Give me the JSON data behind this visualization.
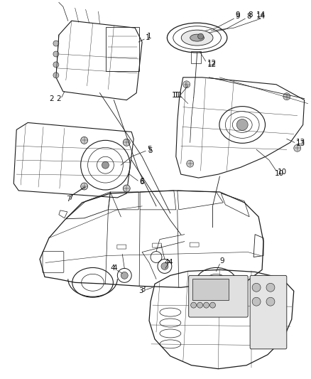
{
  "bg_color": "#ffffff",
  "line_color": "#1a1a1a",
  "label_color": "#111111",
  "fig_width": 4.38,
  "fig_height": 5.33,
  "dpi": 100
}
